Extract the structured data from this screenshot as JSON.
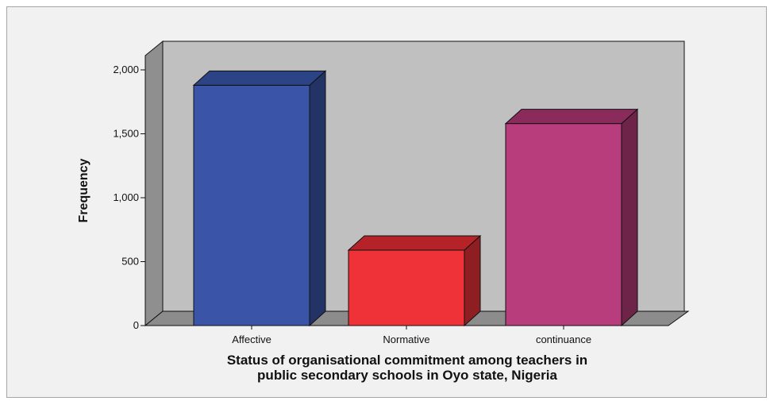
{
  "chart_data": {
    "type": "bar",
    "categories": [
      "Affective",
      "Normative",
      "continuance"
    ],
    "values": [
      1880,
      590,
      1580
    ],
    "colors": [
      "#3a55a8",
      "#ee3237",
      "#b83d7c"
    ],
    "side_colors": [
      "#233366",
      "#8f1e22",
      "#6e2349"
    ],
    "top_colors": [
      "#2c4385",
      "#b52328",
      "#8a2b5c"
    ],
    "title": "",
    "xlabel": [
      "Status of organisational commitment among teachers in",
      "public secondary schools in Oyo state, Nigeria"
    ],
    "ylabel": "Frequency",
    "ylim": [
      0,
      2000
    ],
    "yticks": [
      0,
      500,
      1000,
      1500,
      2000
    ],
    "ytick_labels": [
      "0",
      "500",
      "1,000",
      "1,500",
      "2,000"
    ],
    "style": "3d-bar",
    "wall_color": "#c0c0c0",
    "floor_color": "#8c8c8c",
    "side_wall_color": "#8f8f8f",
    "grid": false,
    "legend": "none"
  }
}
